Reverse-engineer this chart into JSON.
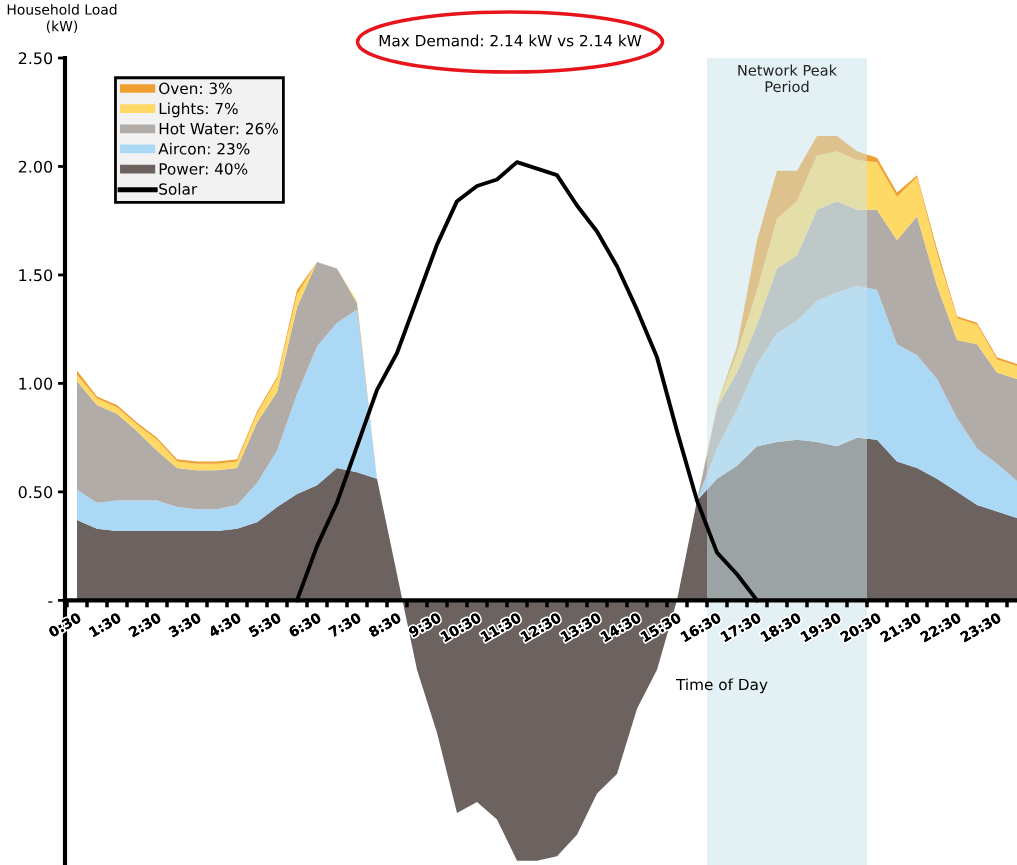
{
  "chart_data": {
    "type": "area",
    "stacked": true,
    "title": "Max Demand: 2.14 kW vs 2.14 kW",
    "ylabel": "Household Load\n(kW)",
    "xlabel": "Time of Day",
    "categories": [
      "0:30",
      null,
      "1:30",
      null,
      "2:30",
      null,
      "3:30",
      null,
      "4:30",
      null,
      "5:30",
      null,
      "6:30",
      null,
      "7:30",
      null,
      "8:30",
      null,
      "9:30",
      null,
      "10:30",
      null,
      "11:30",
      null,
      "12:30",
      null,
      "13:30",
      null,
      "14:30",
      null,
      "15:30",
      null,
      "16:30",
      null,
      "17:30",
      null,
      "18:30",
      null,
      "19:30",
      null,
      "20:30",
      null,
      "21:30",
      null,
      "22:30",
      null,
      "23:30",
      null
    ],
    "ylim": [
      -1.22,
      2.5
    ],
    "yticks": [
      {
        "value": 0,
        "label": "-"
      },
      {
        "value": 0.5,
        "label": "0.50"
      },
      {
        "value": 1.0,
        "label": "1.00"
      },
      {
        "value": 1.5,
        "label": "1.50"
      },
      {
        "value": 2.0,
        "label": "2.00"
      },
      {
        "value": 2.5,
        "label": "2.50"
      }
    ],
    "legend": "top left",
    "series": [
      {
        "name": "Power: 40%",
        "color": "#6c6260",
        "values": [
          0.37,
          0.33,
          0.32,
          0.32,
          0.32,
          0.32,
          0.32,
          0.32,
          0.33,
          0.36,
          0.43,
          0.49,
          0.53,
          0.61,
          0.59,
          0.56,
          0.12,
          -0.32,
          -0.61,
          -0.98,
          -0.93,
          -1.01,
          -1.2,
          -1.2,
          -1.18,
          -1.08,
          -0.89,
          -0.8,
          -0.5,
          -0.32,
          0.0,
          0.46,
          0.56,
          0.62,
          0.71,
          0.73,
          0.74,
          0.73,
          0.71,
          0.75,
          0.74,
          0.64,
          0.61,
          0.56,
          0.5,
          0.44,
          0.41,
          0.38
        ]
      },
      {
        "name": "Aircon: 23%",
        "color": "#abd9f5",
        "values": [
          0.14,
          0.12,
          0.14,
          0.14,
          0.14,
          0.11,
          0.1,
          0.1,
          0.11,
          0.18,
          0.26,
          0.46,
          0.64,
          0.67,
          0.75,
          0,
          0,
          0,
          0,
          0,
          0,
          0,
          0,
          0,
          0,
          0,
          0,
          0,
          0,
          0,
          0,
          0,
          0.14,
          0.26,
          0.38,
          0.5,
          0.55,
          0.65,
          0.71,
          0.7,
          0.69,
          0.54,
          0.52,
          0.46,
          0.34,
          0.26,
          0.22,
          0.17
        ]
      },
      {
        "name": "Hot Water: 26%",
        "color": "#b2aca9",
        "values": [
          0.5,
          0.45,
          0.4,
          0.32,
          0.23,
          0.18,
          0.18,
          0.18,
          0.17,
          0.28,
          0.27,
          0.4,
          0.39,
          0.25,
          0.03,
          0,
          0,
          0,
          0,
          0,
          0,
          0,
          0,
          0,
          0,
          0,
          0,
          0,
          0,
          0,
          0,
          0,
          0.19,
          0.17,
          0.18,
          0.3,
          0.3,
          0.42,
          0.42,
          0.35,
          0.37,
          0.48,
          0.64,
          0.43,
          0.36,
          0.48,
          0.42,
          0.47
        ]
      },
      {
        "name": "Lights: 7%",
        "color": "#ffd966",
        "values": [
          0.03,
          0.03,
          0.03,
          0.03,
          0.05,
          0.03,
          0.03,
          0.03,
          0.03,
          0.04,
          0.06,
          0.06,
          0,
          0,
          0.01,
          0,
          0,
          0,
          0,
          0,
          0,
          0,
          0,
          0,
          0,
          0,
          0,
          0,
          0,
          0,
          0,
          0,
          0.01,
          0.09,
          0.16,
          0.23,
          0.25,
          0.25,
          0.23,
          0.23,
          0.22,
          0.2,
          0.18,
          0.15,
          0.1,
          0.09,
          0.06,
          0.06
        ]
      },
      {
        "name": "Oven: 3%",
        "color": "#f0a030",
        "values": [
          0.02,
          0.01,
          0.01,
          0.01,
          0.01,
          0.01,
          0.01,
          0.01,
          0.01,
          0.01,
          0.01,
          0.02,
          0,
          0,
          0,
          0,
          0,
          0,
          0,
          0,
          0,
          0,
          0,
          0,
          0,
          0,
          0,
          0,
          0,
          0,
          0,
          0,
          0,
          0.03,
          0.23,
          0.22,
          0.14,
          0.09,
          0.07,
          0.04,
          0.02,
          0.02,
          0.01,
          0.02,
          0.01,
          0.01,
          0.01,
          0.01
        ]
      },
      {
        "name": "Solar",
        "type": "line",
        "color": "#000000",
        "line_style": "solid",
        "values": [
          null,
          null,
          null,
          null,
          null,
          null,
          null,
          null,
          null,
          null,
          null,
          0,
          0.25,
          0.45,
          0.71,
          0.97,
          1.14,
          1.39,
          1.64,
          1.84,
          1.91,
          1.94,
          2.02,
          1.99,
          1.96,
          1.82,
          1.7,
          1.54,
          1.34,
          1.12,
          0.78,
          0.46,
          0.22,
          0.12,
          0,
          null,
          null,
          null,
          null,
          null,
          null,
          null,
          null,
          null,
          null,
          null,
          null,
          null
        ]
      }
    ],
    "bands": [
      {
        "axis": "x",
        "from": "16:30",
        "to": "20:30",
        "label": "Network Peak\nPeriod",
        "color": "#c9e3ea"
      }
    ]
  }
}
